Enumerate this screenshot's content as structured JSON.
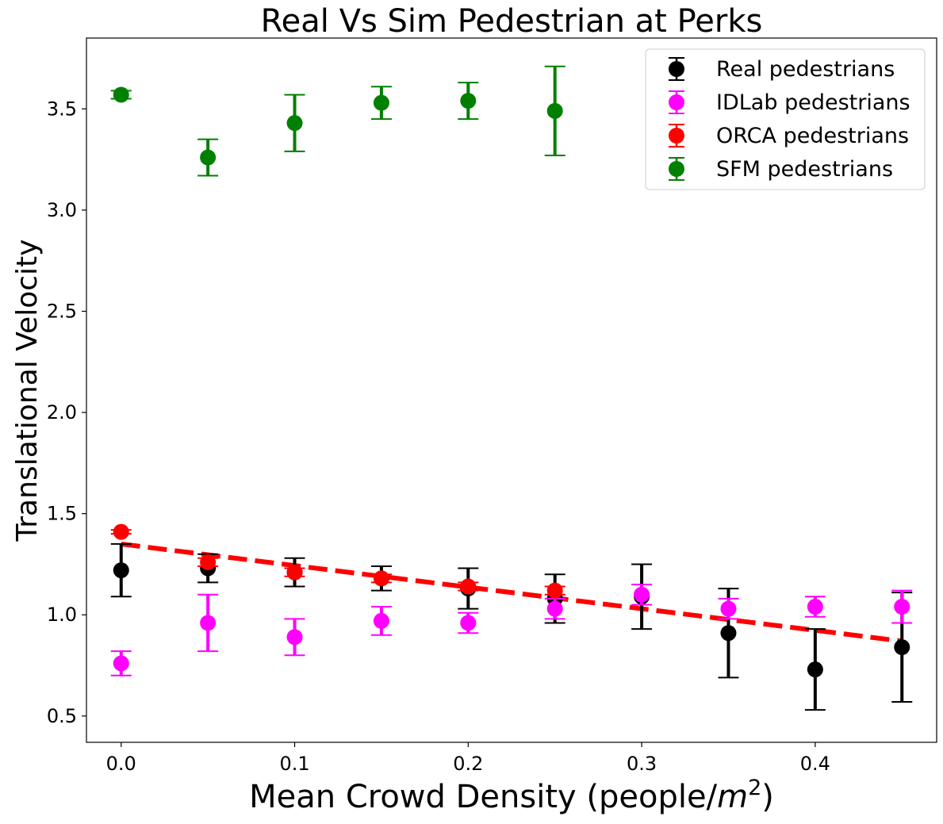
{
  "chart_data": {
    "type": "scatter",
    "title": "Real Vs Sim Pedestrian at Perks",
    "xlabel_main": "Mean Crowd Density (people/",
    "xlabel_var": "m",
    "xlabel_exp": "2",
    "xlabel_close": ")",
    "ylabel": "Translational Velocity",
    "xlim": [
      -0.02,
      0.47
    ],
    "ylim": [
      0.37,
      3.85
    ],
    "xticks": [
      0.0,
      0.1,
      0.2,
      0.3,
      0.4
    ],
    "xtick_labels": [
      "0.0",
      "0.1",
      "0.2",
      "0.3",
      "0.4"
    ],
    "yticks": [
      0.5,
      1.0,
      1.5,
      2.0,
      2.5,
      3.0,
      3.5
    ],
    "ytick_labels": [
      "0.5",
      "1.0",
      "1.5",
      "2.0",
      "2.5",
      "3.0",
      "3.5"
    ],
    "grid": false,
    "legend_position": "top-right",
    "trend_line": {
      "color": "#ff0000",
      "style": "dashed",
      "x": [
        0.0,
        0.45
      ],
      "y": [
        1.35,
        0.87
      ]
    },
    "series": [
      {
        "name": "Real pedestrians",
        "color": "#000000",
        "x": [
          0.0,
          0.05,
          0.1,
          0.15,
          0.2,
          0.25,
          0.3,
          0.35,
          0.4,
          0.45
        ],
        "y": [
          1.22,
          1.23,
          1.21,
          1.18,
          1.13,
          1.08,
          1.09,
          0.91,
          0.73,
          0.84
        ],
        "err": [
          0.13,
          0.07,
          0.07,
          0.06,
          0.1,
          0.12,
          0.16,
          0.22,
          0.2,
          0.27
        ]
      },
      {
        "name": "IDLab pedestrians",
        "color": "#ff00ff",
        "x": [
          0.0,
          0.05,
          0.1,
          0.15,
          0.2,
          0.25,
          0.3,
          0.35,
          0.4,
          0.45
        ],
        "y": [
          0.76,
          0.96,
          0.89,
          0.97,
          0.96,
          1.03,
          1.1,
          1.03,
          1.04,
          1.04
        ],
        "err": [
          0.06,
          0.14,
          0.09,
          0.07,
          0.05,
          0.05,
          0.05,
          0.05,
          0.05,
          0.08
        ]
      },
      {
        "name": "ORCA pedestrians",
        "color": "#ff0000",
        "x": [
          0.0,
          0.05,
          0.1,
          0.15,
          0.2,
          0.25
        ],
        "y": [
          1.41,
          1.26,
          1.21,
          1.18,
          1.14,
          1.12
        ],
        "err": [
          0.01,
          0.02,
          0.02,
          0.02,
          0.02,
          0.02
        ]
      },
      {
        "name": "SFM pedestrians",
        "color": "#008000",
        "x": [
          0.0,
          0.05,
          0.1,
          0.15,
          0.2,
          0.25
        ],
        "y": [
          3.57,
          3.26,
          3.43,
          3.53,
          3.54,
          3.49
        ],
        "err": [
          0.02,
          0.09,
          0.14,
          0.08,
          0.09,
          0.22
        ]
      }
    ]
  }
}
